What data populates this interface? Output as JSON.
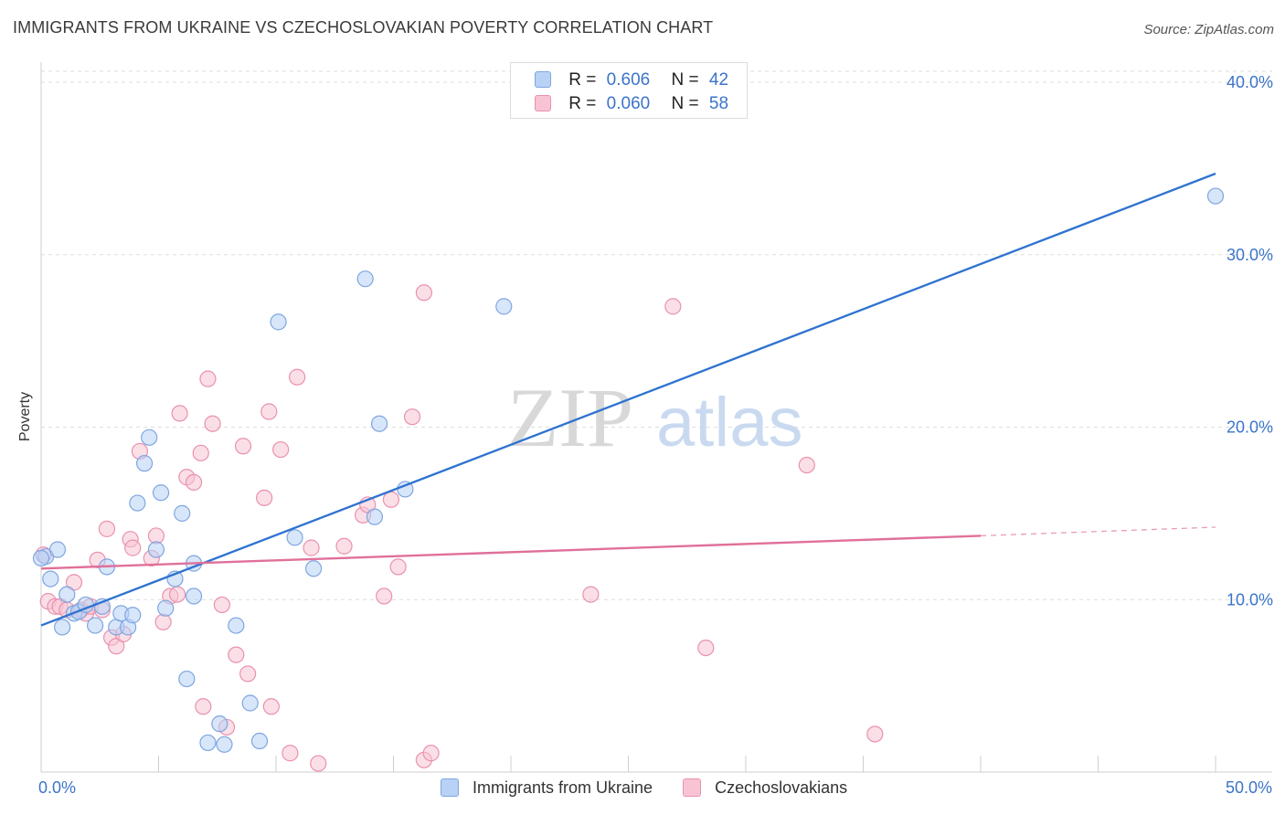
{
  "title": "IMMIGRANTS FROM UKRAINE VS CZECHOSLOVAKIAN POVERTY CORRELATION CHART",
  "source": "Source: ZipAtlas.com",
  "watermark": {
    "zip": "ZIP",
    "atlas": "atlas"
  },
  "colors": {
    "blue_fill": "#b8d2f5",
    "blue_stroke": "#7ea6e0",
    "blue_line": "#2f73d0",
    "pink_fill": "#f8c4d4",
    "pink_stroke": "#e991ae",
    "pink_line": "#e0709a",
    "accent_text": "#3b74c9",
    "grid": "#dddddd"
  },
  "legend_top": [
    {
      "r_label": "R =",
      "r_value": "0.606",
      "n_label": "N =",
      "n_value": "42"
    },
    {
      "r_label": "R =",
      "r_value": "0.060",
      "n_label": "N =",
      "n_value": "58"
    }
  ],
  "legend_bottom": [
    "Immigrants from Ukraine",
    "Czechoslovakians"
  ],
  "chart_data": {
    "type": "scatter",
    "title": "IMMIGRANTS FROM UKRAINE VS CZECHOSLOVAKIAN POVERTY CORRELATION CHART",
    "xlabel": "",
    "ylabel": "Poverty",
    "xlim": [
      0,
      50
    ],
    "ylim": [
      0,
      40
    ],
    "x_tick_labels": [
      "0.0%",
      "50.0%"
    ],
    "y_ticks": [
      10,
      20,
      30,
      40
    ],
    "y_tick_labels": [
      "10.0%",
      "20.0%",
      "30.0%",
      "40.0%"
    ],
    "grid": true,
    "legend_position": "top-center",
    "series": [
      {
        "name": "Immigrants from Ukraine",
        "R": 0.606,
        "N": 42,
        "trend": {
          "x0": 0,
          "y0": 8.5,
          "x1": 50,
          "y1": 34.7
        },
        "points": [
          [
            0.2,
            12.5
          ],
          [
            0.4,
            11.2
          ],
          [
            0.7,
            12.9
          ],
          [
            0.9,
            8.4
          ],
          [
            1.1,
            10.3
          ],
          [
            1.4,
            9.2
          ],
          [
            1.6,
            9.3
          ],
          [
            1.9,
            9.7
          ],
          [
            2.3,
            8.5
          ],
          [
            2.6,
            9.6
          ],
          [
            2.8,
            11.9
          ],
          [
            3.2,
            8.4
          ],
          [
            3.4,
            9.2
          ],
          [
            3.7,
            8.4
          ],
          [
            3.9,
            9.1
          ],
          [
            4.1,
            15.6
          ],
          [
            4.4,
            17.9
          ],
          [
            4.6,
            19.4
          ],
          [
            4.9,
            12.9
          ],
          [
            5.1,
            16.2
          ],
          [
            5.3,
            9.5
          ],
          [
            5.7,
            11.2
          ],
          [
            6.0,
            15.0
          ],
          [
            6.2,
            5.4
          ],
          [
            6.5,
            12.1
          ],
          [
            6.5,
            10.2
          ],
          [
            7.1,
            1.7
          ],
          [
            7.6,
            2.8
          ],
          [
            7.8,
            1.6
          ],
          [
            8.3,
            8.5
          ],
          [
            8.9,
            4.0
          ],
          [
            9.3,
            1.8
          ],
          [
            10.1,
            26.1
          ],
          [
            10.8,
            13.6
          ],
          [
            11.6,
            11.8
          ],
          [
            13.8,
            28.6
          ],
          [
            14.2,
            14.8
          ],
          [
            14.4,
            20.2
          ],
          [
            15.5,
            16.4
          ],
          [
            19.7,
            27.0
          ],
          [
            50.0,
            33.4
          ],
          [
            0.0,
            12.4
          ]
        ]
      },
      {
        "name": "Czechoslovakians",
        "R": 0.06,
        "N": 58,
        "trend": {
          "x0": 0,
          "y0": 11.8,
          "x1": 40,
          "y1": 13.7,
          "dashed_to": {
            "x": 50,
            "y": 14.2
          }
        },
        "points": [
          [
            0.1,
            12.6
          ],
          [
            0.3,
            9.9
          ],
          [
            0.6,
            9.6
          ],
          [
            0.8,
            9.6
          ],
          [
            1.1,
            9.4
          ],
          [
            1.4,
            11.0
          ],
          [
            1.7,
            9.4
          ],
          [
            1.9,
            9.2
          ],
          [
            2.1,
            9.6
          ],
          [
            2.4,
            12.3
          ],
          [
            2.6,
            9.4
          ],
          [
            2.8,
            14.1
          ],
          [
            3.0,
            7.8
          ],
          [
            3.2,
            7.3
          ],
          [
            3.5,
            8.0
          ],
          [
            3.8,
            13.5
          ],
          [
            3.9,
            13.0
          ],
          [
            4.2,
            18.6
          ],
          [
            4.7,
            12.4
          ],
          [
            4.9,
            13.7
          ],
          [
            5.2,
            8.7
          ],
          [
            5.5,
            10.2
          ],
          [
            5.8,
            10.3
          ],
          [
            5.9,
            20.8
          ],
          [
            6.2,
            17.1
          ],
          [
            6.5,
            16.8
          ],
          [
            6.8,
            18.5
          ],
          [
            7.1,
            22.8
          ],
          [
            7.3,
            20.2
          ],
          [
            7.7,
            9.7
          ],
          [
            7.9,
            2.6
          ],
          [
            8.3,
            6.8
          ],
          [
            8.6,
            18.9
          ],
          [
            8.8,
            5.7
          ],
          [
            9.5,
            15.9
          ],
          [
            9.7,
            20.9
          ],
          [
            9.8,
            3.8
          ],
          [
            10.2,
            18.7
          ],
          [
            10.6,
            1.1
          ],
          [
            10.9,
            22.9
          ],
          [
            11.5,
            13.0
          ],
          [
            11.8,
            0.5
          ],
          [
            12.9,
            13.1
          ],
          [
            13.7,
            14.9
          ],
          [
            13.9,
            15.5
          ],
          [
            14.6,
            10.2
          ],
          [
            14.9,
            15.8
          ],
          [
            15.2,
            11.9
          ],
          [
            15.8,
            20.6
          ],
          [
            16.3,
            0.7
          ],
          [
            16.6,
            1.1
          ],
          [
            16.3,
            27.8
          ],
          [
            23.4,
            10.3
          ],
          [
            26.9,
            27.0
          ],
          [
            28.3,
            7.2
          ],
          [
            32.6,
            17.8
          ],
          [
            35.5,
            2.2
          ],
          [
            6.9,
            3.8
          ]
        ]
      }
    ]
  }
}
